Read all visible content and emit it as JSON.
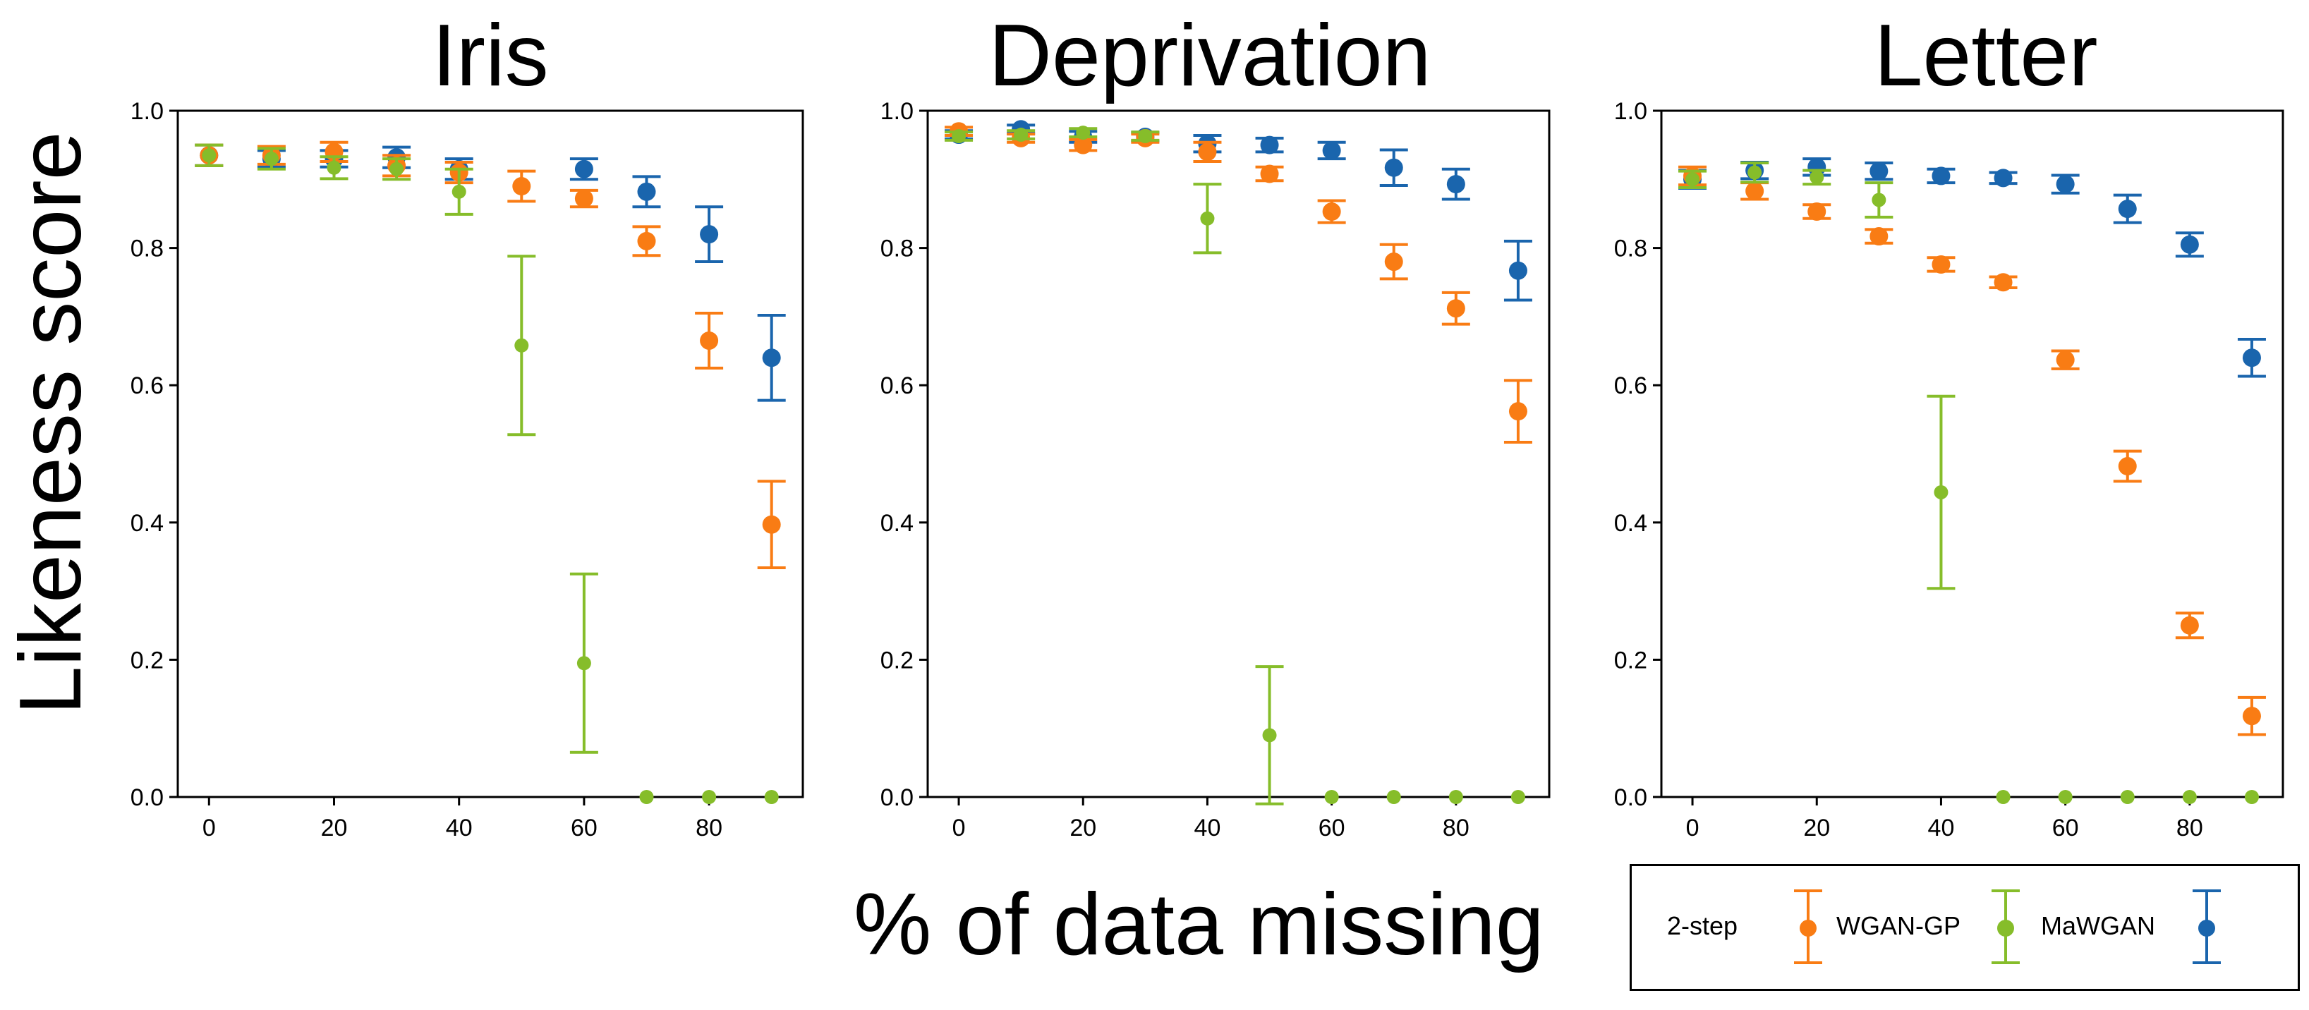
{
  "colors": {
    "two_step": "#f97c14",
    "wgan_gp": "#86bd2a",
    "mawgan": "#1a65ad"
  },
  "figure": {
    "ylabel": "Likeness score",
    "xlabel": "% of data missing"
  },
  "legend": {
    "items": [
      {
        "label": "2-step",
        "color": "#f97c14"
      },
      {
        "label": "WGAN-GP",
        "color": "#86bd2a"
      },
      {
        "label": "MaWGAN",
        "color": "#1a65ad"
      }
    ]
  },
  "chart_data": [
    {
      "type": "scatter",
      "title": "Iris",
      "xlim": [
        -5,
        95
      ],
      "ylim": [
        0.0,
        1.0
      ],
      "xticks": [
        "0",
        "20",
        "40",
        "60",
        "80"
      ],
      "yticks": [
        "0.0",
        "0.2",
        "0.4",
        "0.6",
        "0.8",
        "1.0"
      ],
      "x": [
        0,
        10,
        20,
        30,
        40,
        50,
        60,
        70,
        80,
        90
      ],
      "series": [
        {
          "name": "2-step",
          "color": "#f97c14",
          "values": [
            0.935,
            0.935,
            0.94,
            0.92,
            0.91,
            0.89,
            0.872,
            0.81,
            0.665,
            0.397
          ],
          "err": [
            0.015,
            0.013,
            0.014,
            0.015,
            0.015,
            0.022,
            0.012,
            0.021,
            0.04,
            0.063
          ]
        },
        {
          "name": "WGAN-GP",
          "color": "#86bd2a",
          "values": [
            0.935,
            0.93,
            0.917,
            0.915,
            0.882,
            0.658,
            0.195,
            0.0,
            0.0,
            0.0
          ],
          "err": [
            0.015,
            0.015,
            0.016,
            0.015,
            0.033,
            0.13,
            0.13,
            0.0,
            0.0,
            0.0
          ]
        },
        {
          "name": "MaWGAN",
          "color": "#1a65ad",
          "values": [
            0.935,
            0.93,
            0.93,
            0.932,
            0.915,
            null,
            0.915,
            0.882,
            0.82,
            0.64
          ],
          "err": [
            0.015,
            0.012,
            0.012,
            0.015,
            0.015,
            null,
            0.015,
            0.022,
            0.04,
            0.062
          ]
        }
      ]
    },
    {
      "type": "scatter",
      "title": "Deprivation",
      "xlim": [
        -5,
        95
      ],
      "ylim": [
        0.0,
        1.0
      ],
      "xticks": [
        "0",
        "20",
        "40",
        "60",
        "80"
      ],
      "yticks": [
        "0.0",
        "0.2",
        "0.4",
        "0.6",
        "0.8",
        "1.0"
      ],
      "x": [
        0,
        10,
        20,
        30,
        40,
        50,
        60,
        70,
        80,
        90
      ],
      "series": [
        {
          "name": "2-step",
          "color": "#f97c14",
          "values": [
            0.97,
            0.96,
            0.95,
            0.96,
            0.94,
            0.908,
            0.853,
            0.78,
            0.712,
            0.562
          ],
          "err": [
            0.006,
            0.006,
            0.008,
            0.006,
            0.014,
            0.01,
            0.016,
            0.025,
            0.023,
            0.045
          ]
        },
        {
          "name": "WGAN-GP",
          "color": "#86bd2a",
          "values": [
            0.963,
            0.965,
            0.968,
            0.963,
            0.843,
            0.09,
            0.0,
            0.0,
            0.0,
            0.0
          ],
          "err": [
            0.006,
            0.006,
            0.006,
            0.006,
            0.05,
            0.1,
            0.0,
            0.0,
            0.0,
            0.0
          ]
        },
        {
          "name": "MaWGAN",
          "color": "#1a65ad",
          "values": [
            0.965,
            0.973,
            0.962,
            0.962,
            0.952,
            0.95,
            0.942,
            0.917,
            0.893,
            0.767
          ],
          "err": [
            0.006,
            0.006,
            0.008,
            0.006,
            0.012,
            0.01,
            0.012,
            0.026,
            0.022,
            0.043
          ]
        }
      ]
    },
    {
      "type": "scatter",
      "title": "Letter",
      "xlim": [
        -5,
        95
      ],
      "ylim": [
        0.0,
        1.0
      ],
      "xticks": [
        "0",
        "20",
        "40",
        "60",
        "80"
      ],
      "yticks": [
        "0.0",
        "0.2",
        "0.4",
        "0.6",
        "0.8",
        "1.0"
      ],
      "x": [
        0,
        10,
        20,
        30,
        40,
        50,
        60,
        70,
        80,
        90
      ],
      "series": [
        {
          "name": "2-step",
          "color": "#f97c14",
          "values": [
            0.905,
            0.883,
            0.853,
            0.817,
            0.776,
            0.75,
            0.637,
            0.482,
            0.25,
            0.118
          ],
          "err": [
            0.013,
            0.012,
            0.01,
            0.01,
            0.01,
            0.008,
            0.013,
            0.022,
            0.018,
            0.027
          ]
        },
        {
          "name": "WGAN-GP",
          "color": "#86bd2a",
          "values": [
            0.9,
            0.91,
            0.903,
            0.87,
            0.444,
            0.0,
            0.0,
            0.0,
            0.0,
            0.0
          ],
          "err": [
            0.012,
            0.014,
            0.01,
            0.025,
            0.14,
            0.0,
            0.0,
            0.0,
            0.0,
            0.0
          ]
        },
        {
          "name": "MaWGAN",
          "color": "#1a65ad",
          "values": [
            0.9,
            0.913,
            0.918,
            0.912,
            0.905,
            0.902,
            0.893,
            0.857,
            0.805,
            0.64
          ],
          "err": [
            0.013,
            0.012,
            0.012,
            0.012,
            0.01,
            0.008,
            0.013,
            0.02,
            0.017,
            0.027
          ]
        }
      ]
    }
  ]
}
